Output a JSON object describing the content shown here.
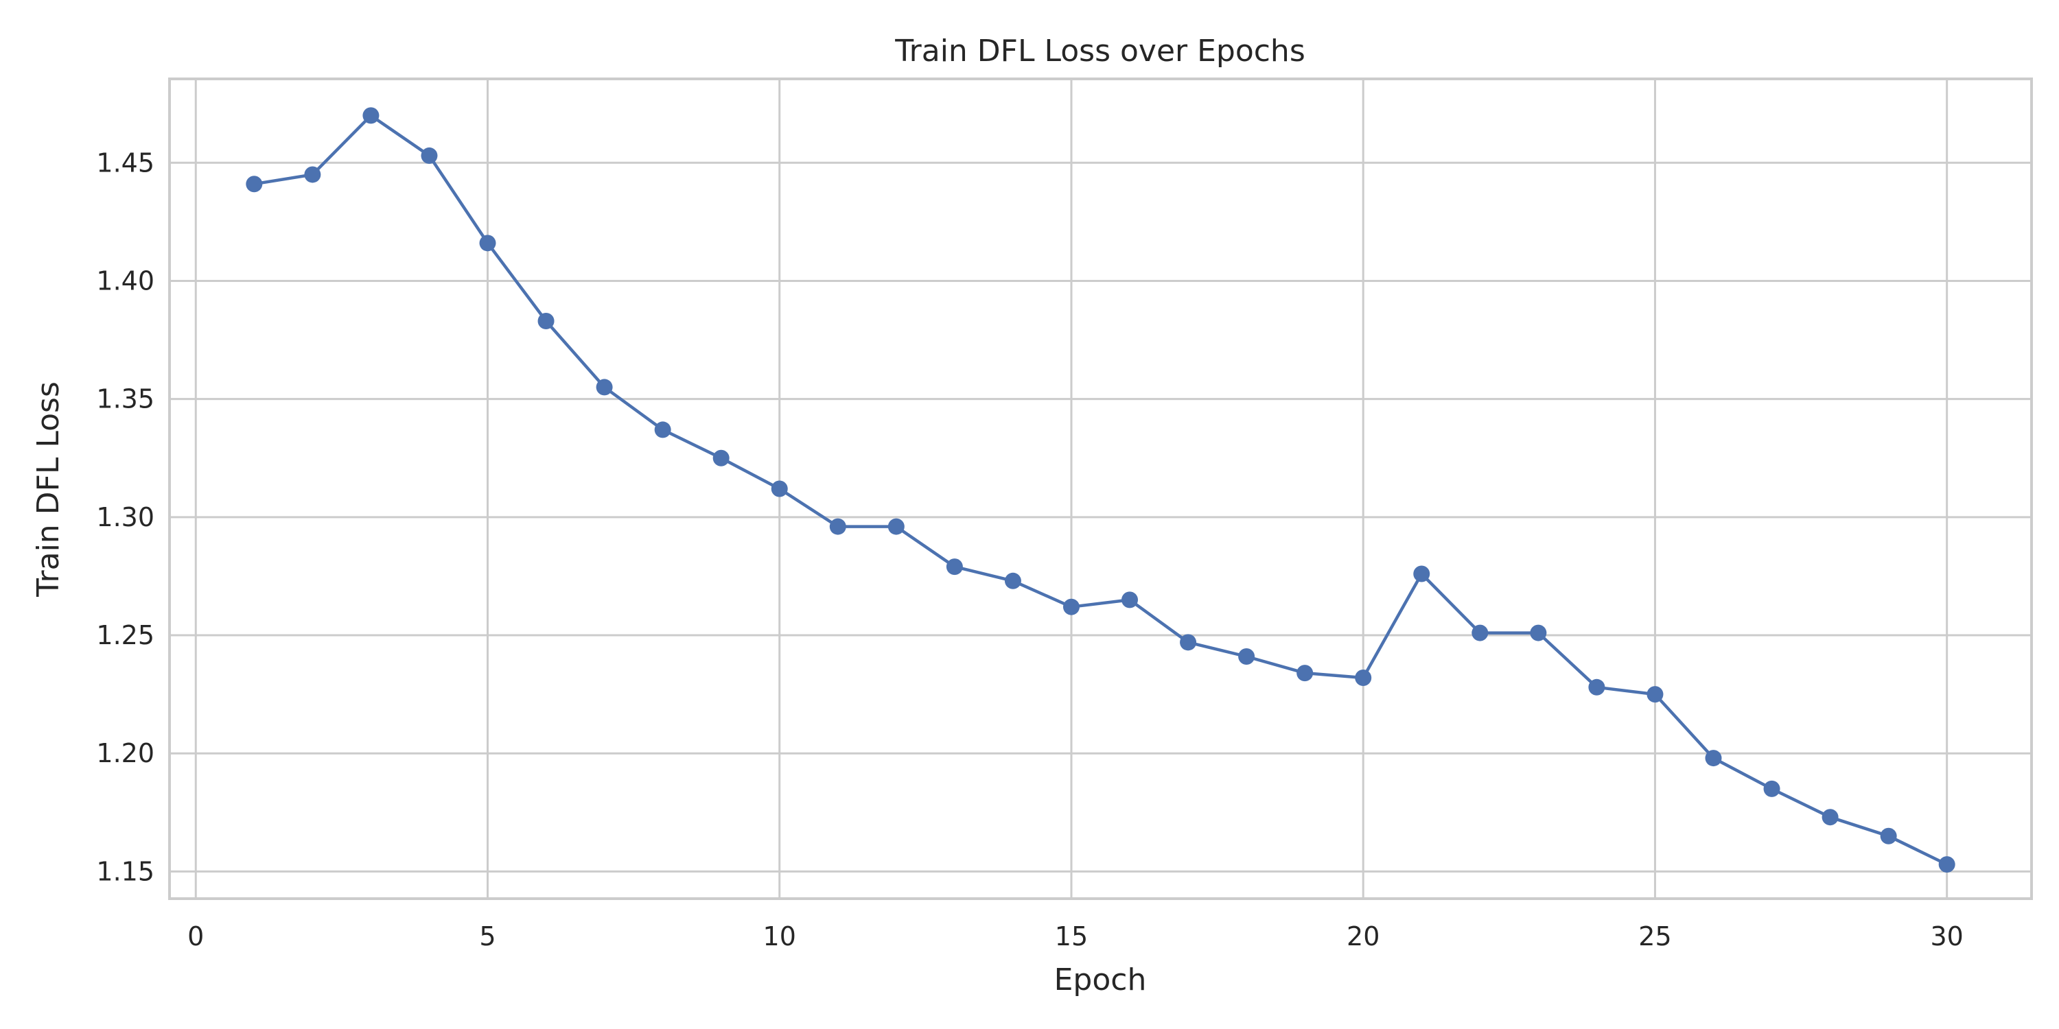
{
  "chart_data": {
    "type": "line",
    "title": "Train DFL Loss over Epochs",
    "xlabel": "Epoch",
    "ylabel": "Train DFL Loss",
    "xlim": [
      -0.45,
      31.45
    ],
    "ylim": [
      1.1385,
      1.4855
    ],
    "xticks": [
      0,
      5,
      10,
      15,
      20,
      25,
      30
    ],
    "xtick_labels": [
      "0",
      "5",
      "10",
      "15",
      "20",
      "25",
      "30"
    ],
    "yticks": [
      1.15,
      1.2,
      1.25,
      1.3,
      1.35,
      1.4,
      1.45
    ],
    "ytick_labels": [
      "1.15",
      "1.20",
      "1.25",
      "1.30",
      "1.35",
      "1.40",
      "1.45"
    ],
    "grid": true,
    "legend": "none",
    "series": [
      {
        "color": "#4c72b0",
        "marker": "circle",
        "x": [
          1,
          2,
          3,
          4,
          5,
          6,
          7,
          8,
          9,
          10,
          11,
          12,
          13,
          14,
          15,
          16,
          17,
          18,
          19,
          20,
          21,
          22,
          23,
          24,
          25,
          26,
          27,
          28,
          29,
          30
        ],
        "y": [
          1.441,
          1.445,
          1.47,
          1.453,
          1.416,
          1.383,
          1.355,
          1.337,
          1.325,
          1.312,
          1.296,
          1.296,
          1.279,
          1.273,
          1.262,
          1.265,
          1.247,
          1.241,
          1.234,
          1.232,
          1.276,
          1.251,
          1.251,
          1.228,
          1.225,
          1.198,
          1.185,
          1.173,
          1.165,
          1.153
        ]
      }
    ]
  }
}
